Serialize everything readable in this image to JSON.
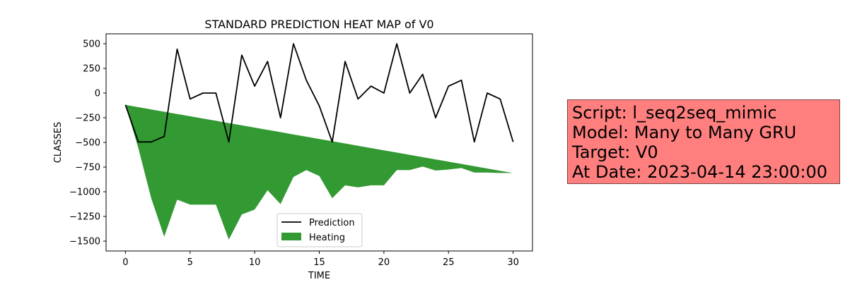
{
  "chart_data": {
    "type": "line",
    "title": "STANDARD PREDICTION HEAT MAP of V0",
    "xlabel": "TIME",
    "ylabel": "CLASSES",
    "xlim": [
      -1.5,
      31.5
    ],
    "ylim": [
      -1600,
      600
    ],
    "x_ticks": [
      0,
      5,
      10,
      15,
      20,
      25,
      30
    ],
    "y_ticks": [
      500,
      250,
      0,
      -250,
      -500,
      -750,
      -1000,
      -1250,
      -1500
    ],
    "y_tick_labels": [
      "500",
      "250",
      "0",
      "−250",
      "−500",
      "−750",
      "−1000",
      "−1250",
      "−1500"
    ],
    "x": [
      0,
      1,
      2,
      3,
      4,
      5,
      6,
      7,
      8,
      9,
      10,
      11,
      12,
      13,
      14,
      15,
      16,
      17,
      18,
      19,
      20,
      21,
      22,
      23,
      24,
      25,
      26,
      27,
      28,
      29,
      30
    ],
    "series": [
      {
        "name": "Prediction",
        "kind": "line",
        "color": "#000000",
        "values": [
          -120,
          -495,
          -495,
          -440,
          445,
          -60,
          0,
          0,
          -495,
          385,
          70,
          320,
          -250,
          500,
          130,
          -130,
          -495,
          320,
          -60,
          70,
          0,
          500,
          0,
          190,
          -250,
          70,
          130,
          -495,
          0,
          -60,
          -495
        ]
      },
      {
        "name": "Heating",
        "kind": "area",
        "color": "#339933",
        "upper": [
          -120,
          -143,
          -166,
          -189,
          -212,
          -235,
          -258,
          -281,
          -304,
          -327,
          -350,
          -373,
          -396,
          -419,
          -442,
          -465,
          -488,
          -511,
          -534,
          -557,
          -580,
          -603,
          -626,
          -649,
          -672,
          -695,
          -718,
          -741,
          -764,
          -787,
          -810
        ],
        "lower": [
          -120,
          -560,
          -1070,
          -1455,
          -1080,
          -1130,
          -1130,
          -1130,
          -1485,
          -1230,
          -1180,
          -985,
          -1125,
          -850,
          -780,
          -840,
          -1065,
          -935,
          -955,
          -935,
          -935,
          -780,
          -780,
          -745,
          -785,
          -775,
          -760,
          -805,
          -805,
          -810,
          -810
        ]
      }
    ],
    "legend": {
      "placement": "lower-center"
    },
    "grid": false
  },
  "info_box": {
    "background": "#ff7f7f",
    "lines": [
      "Script: l_seq2seq_mimic",
      "Model: Many to Many GRU",
      "Target: V0",
      "At Date: 2023-04-14 23:00:00"
    ]
  }
}
